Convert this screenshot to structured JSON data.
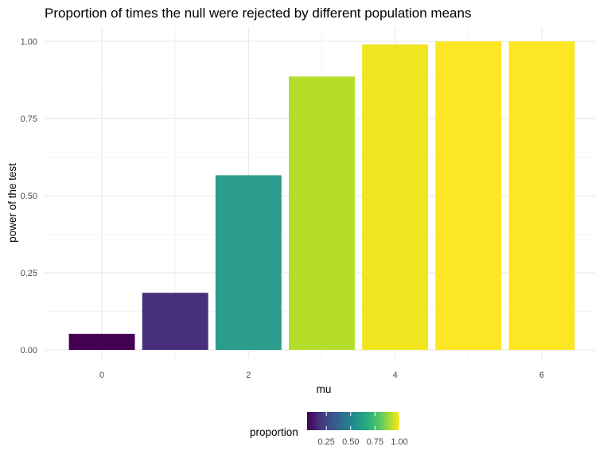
{
  "chart_data": {
    "type": "bar",
    "title": "Proportion of times the null were rejected by different population means",
    "xlabel": "mu",
    "ylabel": "power of the test",
    "x": [
      0,
      1,
      2,
      3,
      4,
      5,
      6
    ],
    "values": [
      0.052,
      0.185,
      0.566,
      0.886,
      0.99,
      1.0,
      1.0
    ],
    "ylim": [
      0,
      1.0
    ],
    "xlim": [
      -0.5,
      6.5
    ],
    "x_ticks": [
      0,
      2,
      4,
      6
    ],
    "x_tick_labels": [
      "0",
      "2",
      "4",
      "6"
    ],
    "y_ticks": [
      0,
      0.25,
      0.5,
      0.75,
      1.0
    ],
    "y_tick_labels": [
      "0.00",
      "0.25",
      "0.50",
      "0.75",
      "1.00"
    ],
    "grid": true,
    "fill_by": "proportion",
    "colorscale": "viridis",
    "colors": [
      "#440154",
      "#472F7D",
      "#2A9D8C",
      "#B5DE2B",
      "#F0E51F",
      "#FDE725",
      "#FDE725"
    ],
    "legend": {
      "title": "proportion",
      "position": "bottom",
      "range": [
        0.052,
        1.0
      ],
      "ticks": [
        0.25,
        0.5,
        0.75,
        1.0
      ],
      "tick_labels": [
        "0.25",
        "0.50",
        "0.75",
        "1.00"
      ]
    }
  }
}
